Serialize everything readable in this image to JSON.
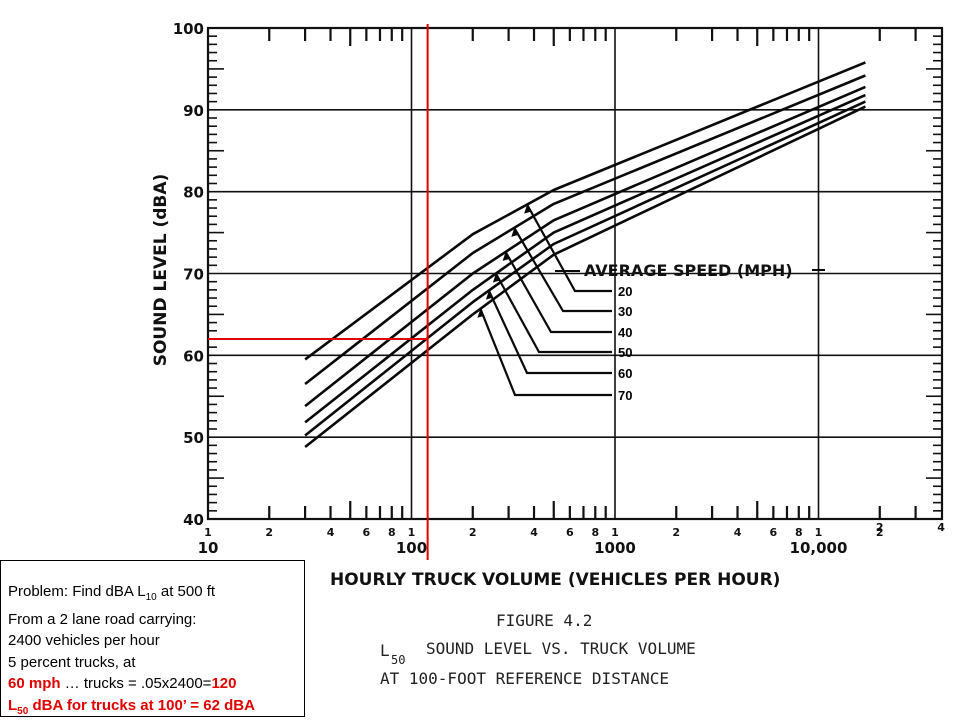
{
  "chart_data": {
    "type": "line",
    "title": "FIGURE 4.2",
    "subtitle": "SOUND LEVEL VS. TRUCK VOLUME",
    "subtitle_prefix": "L",
    "subtitle_sub": "50",
    "subtitle_line2": "AT 100-FOOT REFERENCE DISTANCE",
    "xlabel": "HOURLY TRUCK VOLUME (VEHICLES PER HOUR)",
    "ylabel": "SOUND LEVEL (dBA)",
    "x_scale": "log",
    "xlim": [
      10,
      40000
    ],
    "ylim": [
      40,
      100
    ],
    "grid": true,
    "y_ticks": [
      "40",
      "50",
      "60",
      "70",
      "80",
      "90",
      "100"
    ],
    "x_decade_labels": [
      "10",
      "100",
      "1000",
      "10,000"
    ],
    "x_minor_labels": [
      "1",
      "2",
      "4",
      "6",
      "8"
    ],
    "x_top_labels": [
      "2",
      "4"
    ],
    "legend_title": "AVERAGE SPEED (MPH)",
    "series": [
      {
        "name": "20",
        "x": [
          30,
          200,
          500,
          17000
        ],
        "y": [
          59.5,
          74.8,
          80.2,
          95.8
        ]
      },
      {
        "name": "30",
        "x": [
          30,
          200,
          500,
          17000
        ],
        "y": [
          56.5,
          72.5,
          78.5,
          94.2
        ]
      },
      {
        "name": "40",
        "x": [
          30,
          200,
          500,
          17000
        ],
        "y": [
          53.8,
          70.0,
          76.5,
          92.8
        ]
      },
      {
        "name": "50",
        "x": [
          30,
          200,
          500,
          17000
        ],
        "y": [
          51.8,
          68.0,
          75.0,
          91.8
        ]
      },
      {
        "name": "60",
        "x": [
          30,
          200,
          500,
          17000
        ],
        "y": [
          50.2,
          66.5,
          73.6,
          91.0
        ]
      },
      {
        "name": "70",
        "x": [
          30,
          200,
          500,
          17000
        ],
        "y": [
          48.8,
          65.0,
          72.3,
          90.4
        ]
      }
    ],
    "annotations": {
      "truck_volume": 120,
      "sound_level": 62,
      "color": "#e00000"
    }
  },
  "problem": {
    "line1_pre": "Problem: Find dBA L",
    "line1_sub": "10",
    "line1_post": " at 500 ft",
    "line2": "From a 2 lane road carrying:",
    "line3": "2400 vehicles per hour",
    "line4": "5 percent trucks, at",
    "line5_red1": "60 mph",
    "line5_mid": " … trucks = .05x2400=",
    "line5_red2": "120",
    "line6_pre": "L",
    "line6_sub": "50",
    "line6_post": " dBA for trucks at 100’ =  62 dBA"
  }
}
